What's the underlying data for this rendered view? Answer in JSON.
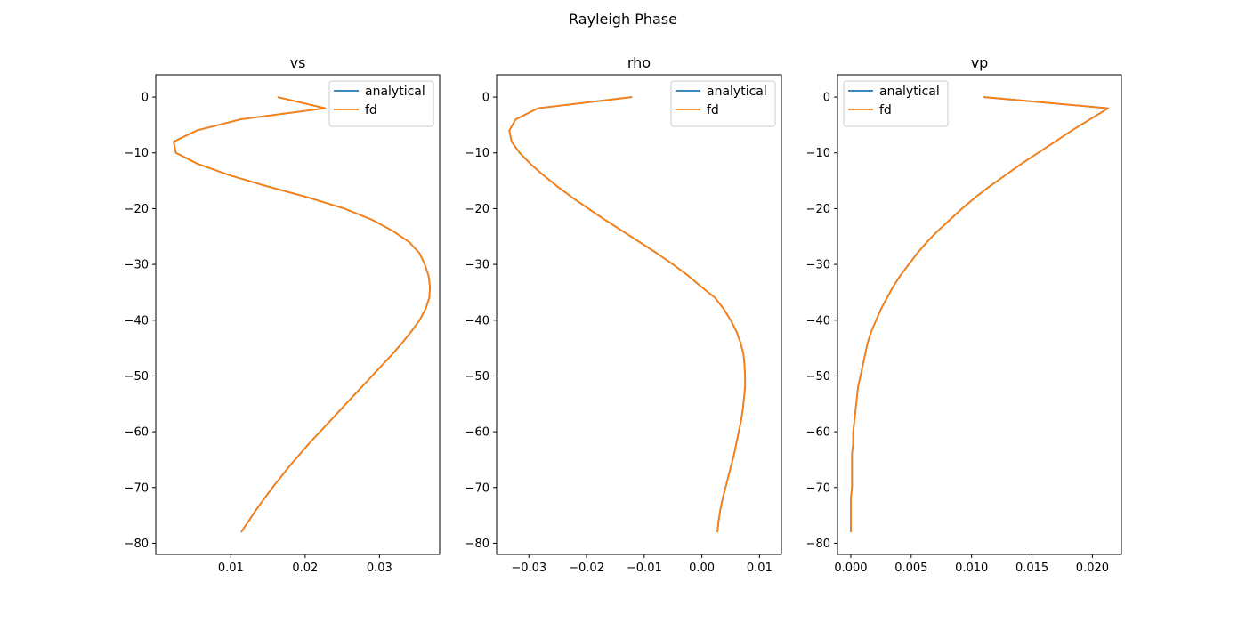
{
  "figure_title": "Rayleigh Phase",
  "colors": {
    "analytical": "#1f77b4",
    "fd": "#ff7f0e"
  },
  "chart_data": [
    {
      "type": "line",
      "title": "vs",
      "xlim": [
        -0.0001,
        0.0381
      ],
      "ylim": [
        -82,
        4
      ],
      "xticks": [
        0.01,
        0.02,
        0.03
      ],
      "xtick_labels": [
        "0.01",
        "0.02",
        "0.03"
      ],
      "yticks": [
        0,
        -10,
        -20,
        -30,
        -40,
        -50,
        -60,
        -70,
        -80
      ],
      "ytick_labels": [
        "0",
        "−10",
        "−20",
        "−30",
        "−40",
        "−50",
        "−60",
        "−70",
        "−80"
      ],
      "legend": "top-right",
      "y": [
        0,
        -2,
        -4,
        -6,
        -8,
        -10,
        -12,
        -14,
        -16,
        -18,
        -20,
        -22,
        -24,
        -26,
        -28,
        -30,
        -32,
        -34,
        -36,
        -38,
        -40,
        -42,
        -44,
        -46,
        -48,
        -50,
        -52,
        -54,
        -56,
        -58,
        -60,
        -62,
        -64,
        -66,
        -68,
        -70,
        -72,
        -74,
        -76,
        -78
      ],
      "series": [
        {
          "name": "analytical",
          "x": [
            0.0163,
            0.0227,
            0.0113,
            0.0054,
            0.0023,
            0.0026,
            0.0056,
            0.0098,
            0.0149,
            0.0204,
            0.0253,
            0.029,
            0.0318,
            0.034,
            0.0354,
            0.0361,
            0.0366,
            0.0368,
            0.0367,
            0.0362,
            0.0354,
            0.0343,
            0.0331,
            0.0318,
            0.0304,
            0.029,
            0.0276,
            0.0262,
            0.0248,
            0.0234,
            0.022,
            0.0206,
            0.0193,
            0.018,
            0.0168,
            0.0156,
            0.0145,
            0.0134,
            0.0124,
            0.0114
          ]
        },
        {
          "name": "fd",
          "x": [
            0.0163,
            0.0227,
            0.0113,
            0.0054,
            0.0023,
            0.0026,
            0.0056,
            0.0098,
            0.0149,
            0.0204,
            0.0253,
            0.029,
            0.0318,
            0.034,
            0.0354,
            0.0361,
            0.0366,
            0.0368,
            0.0367,
            0.0362,
            0.0354,
            0.0343,
            0.0331,
            0.0318,
            0.0304,
            0.029,
            0.0276,
            0.0262,
            0.0248,
            0.0234,
            0.022,
            0.0206,
            0.0193,
            0.018,
            0.0168,
            0.0156,
            0.0145,
            0.0134,
            0.0124,
            0.0114
          ]
        }
      ]
    },
    {
      "type": "line",
      "title": "rho",
      "xlim": [
        -0.0356,
        0.0138
      ],
      "ylim": [
        -82,
        4
      ],
      "xticks": [
        -0.03,
        -0.02,
        -0.01,
        0.0,
        0.01
      ],
      "xtick_labels": [
        "−0.03",
        "−0.02",
        "−0.01",
        "0.00",
        "0.01"
      ],
      "yticks": [
        0,
        -10,
        -20,
        -30,
        -40,
        -50,
        -60,
        -70,
        -80
      ],
      "ytick_labels": [
        "0",
        "−10",
        "−20",
        "−30",
        "−40",
        "−50",
        "−60",
        "−70",
        "−80"
      ],
      "legend": "top-right",
      "y": [
        0,
        -2,
        -4,
        -6,
        -8,
        -10,
        -12,
        -14,
        -16,
        -18,
        -20,
        -22,
        -24,
        -26,
        -28,
        -30,
        -32,
        -34,
        -36,
        -38,
        -40,
        -42,
        -44,
        -46,
        -48,
        -50,
        -52,
        -54,
        -56,
        -58,
        -60,
        -62,
        -64,
        -66,
        -68,
        -70,
        -72,
        -74,
        -76,
        -78
      ],
      "series": [
        {
          "name": "analytical",
          "x": [
            -0.0121,
            -0.0284,
            -0.0323,
            -0.0334,
            -0.033,
            -0.0316,
            -0.0297,
            -0.0275,
            -0.0251,
            -0.0225,
            -0.0197,
            -0.0168,
            -0.0138,
            -0.0108,
            -0.0078,
            -0.005,
            -0.0024,
            -0.0001,
            0.0023,
            0.0038,
            0.005,
            0.006,
            0.0067,
            0.0072,
            0.0074,
            0.0075,
            0.0075,
            0.0073,
            0.0071,
            0.0068,
            0.0064,
            0.006,
            0.0056,
            0.0051,
            0.0046,
            0.0041,
            0.0036,
            0.0032,
            0.0029,
            0.0027
          ]
        },
        {
          "name": "fd",
          "x": [
            -0.0121,
            -0.0284,
            -0.0323,
            -0.0334,
            -0.033,
            -0.0316,
            -0.0297,
            -0.0275,
            -0.0251,
            -0.0225,
            -0.0197,
            -0.0168,
            -0.0138,
            -0.0108,
            -0.0078,
            -0.005,
            -0.0024,
            -0.0001,
            0.0023,
            0.0038,
            0.005,
            0.006,
            0.0067,
            0.0072,
            0.0074,
            0.0075,
            0.0075,
            0.0073,
            0.0071,
            0.0068,
            0.0064,
            0.006,
            0.0056,
            0.0051,
            0.0046,
            0.0041,
            0.0036,
            0.0032,
            0.0029,
            0.0027
          ]
        }
      ]
    },
    {
      "type": "line",
      "title": "vp",
      "xlim": [
        -0.0011,
        0.0224
      ],
      "ylim": [
        -82,
        4
      ],
      "xticks": [
        0.0,
        0.005,
        0.01,
        0.015,
        0.02
      ],
      "xtick_labels": [
        "0.000",
        "0.005",
        "0.010",
        "0.015",
        "0.020"
      ],
      "yticks": [
        0,
        -10,
        -20,
        -30,
        -40,
        -50,
        -60,
        -70,
        -80
      ],
      "ytick_labels": [
        "0",
        "−10",
        "−20",
        "−30",
        "−40",
        "−50",
        "−60",
        "−70",
        "−80"
      ],
      "legend": "top-left",
      "y": [
        0,
        -2,
        -4,
        -6,
        -8,
        -10,
        -12,
        -14,
        -16,
        -18,
        -20,
        -22,
        -24,
        -26,
        -28,
        -30,
        -32,
        -34,
        -36,
        -38,
        -40,
        -42,
        -44,
        -46,
        -48,
        -50,
        -52,
        -54,
        -56,
        -58,
        -60,
        -62,
        -64,
        -66,
        -68,
        -70,
        -72,
        -74,
        -76,
        -78
      ],
      "series": [
        {
          "name": "analytical",
          "x": [
            0.011,
            0.0213,
            0.0198,
            0.0183,
            0.0169,
            0.0155,
            0.0141,
            0.0128,
            0.0115,
            0.0103,
            0.0092,
            0.0082,
            0.0072,
            0.0063,
            0.0055,
            0.0048,
            0.0041,
            0.0035,
            0.003,
            0.0025,
            0.0021,
            0.0017,
            0.0014,
            0.0012,
            0.001,
            0.0008,
            0.0006,
            0.0005,
            0.0004,
            0.0003,
            0.0002,
            0.0002,
            0.0001,
            0.0001,
            0.0001,
            0.0001,
            0.0,
            0.0,
            0.0,
            0.0
          ]
        },
        {
          "name": "fd",
          "x": [
            0.011,
            0.0213,
            0.0198,
            0.0183,
            0.0169,
            0.0155,
            0.0141,
            0.0128,
            0.0115,
            0.0103,
            0.0092,
            0.0082,
            0.0072,
            0.0063,
            0.0055,
            0.0048,
            0.0041,
            0.0035,
            0.003,
            0.0025,
            0.0021,
            0.0017,
            0.0014,
            0.0012,
            0.001,
            0.0008,
            0.0006,
            0.0005,
            0.0004,
            0.0003,
            0.0002,
            0.0002,
            0.0001,
            0.0001,
            0.0001,
            0.0001,
            0.0,
            0.0,
            0.0,
            0.0
          ]
        }
      ]
    }
  ]
}
